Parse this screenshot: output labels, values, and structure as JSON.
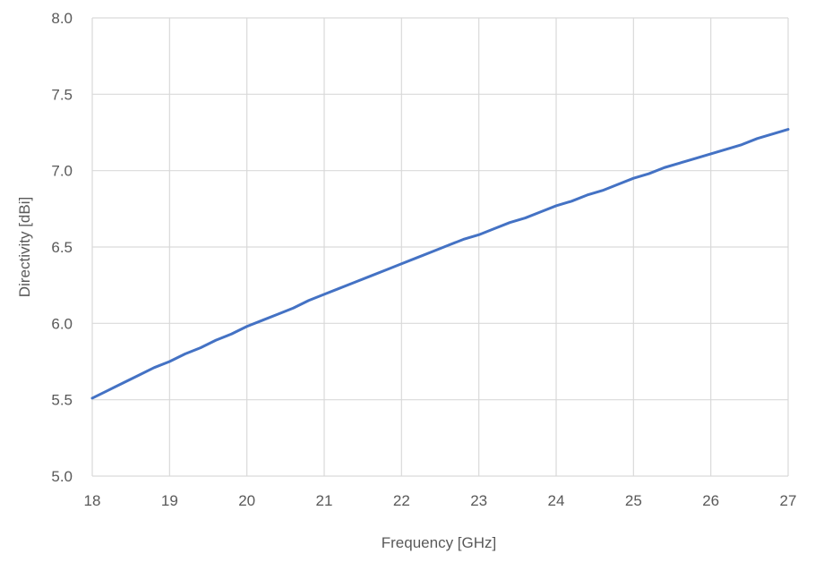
{
  "chart_data": {
    "type": "line",
    "title": "",
    "xlabel": "Frequency [GHz]",
    "ylabel": "Directivity [dBi]",
    "xlim": [
      18,
      27
    ],
    "ylim": [
      5.0,
      8.0
    ],
    "x_ticks": [
      "18",
      "19",
      "20",
      "21",
      "22",
      "23",
      "24",
      "25",
      "26",
      "27"
    ],
    "y_ticks": [
      "5.0",
      "5.5",
      "6.0",
      "6.5",
      "7.0",
      "7.5",
      "8.0"
    ],
    "grid": true,
    "legend": "none",
    "series": [
      {
        "color": "#4472C4",
        "x": [
          18,
          18.2,
          18.4,
          18.6,
          18.8,
          19,
          19.2,
          19.4,
          19.6,
          19.8,
          20,
          20.2,
          20.4,
          20.6,
          20.8,
          21,
          21.2,
          21.4,
          21.6,
          21.8,
          22,
          22.2,
          22.4,
          22.6,
          22.8,
          23,
          23.2,
          23.4,
          23.6,
          23.8,
          24,
          24.2,
          24.4,
          24.6,
          24.8,
          25,
          25.2,
          25.4,
          25.6,
          25.8,
          26,
          26.2,
          26.4,
          26.6,
          26.8,
          27
        ],
        "y": [
          5.51,
          5.56,
          5.61,
          5.66,
          5.71,
          5.75,
          5.8,
          5.84,
          5.89,
          5.93,
          5.98,
          6.02,
          6.06,
          6.1,
          6.15,
          6.19,
          6.23,
          6.27,
          6.31,
          6.35,
          6.39,
          6.43,
          6.47,
          6.51,
          6.55,
          6.58,
          6.62,
          6.66,
          6.69,
          6.73,
          6.77,
          6.8,
          6.84,
          6.87,
          6.91,
          6.95,
          6.98,
          7.02,
          7.05,
          7.08,
          7.11,
          7.14,
          7.17,
          7.21,
          7.24,
          7.27
        ]
      }
    ]
  }
}
